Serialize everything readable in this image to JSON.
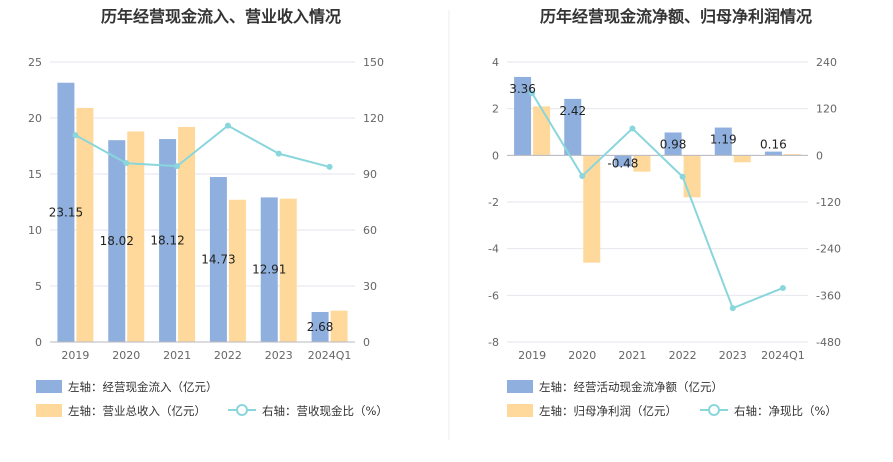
{
  "chart_data": [
    {
      "type": "bar",
      "title": "历年经营现金流入、营业收入情况",
      "categories": [
        "2019",
        "2020",
        "2021",
        "2022",
        "2023",
        "2024Q1"
      ],
      "left_axis": {
        "ylim": [
          0,
          25
        ],
        "ticks": [
          "0",
          "5",
          "10",
          "15",
          "20",
          "25"
        ]
      },
      "right_axis": {
        "ylim": [
          0,
          150
        ],
        "ticks": [
          "0",
          "30",
          "60",
          "90",
          "120",
          "150"
        ]
      },
      "series": [
        {
          "name": "左轴：经营现金流入（亿元）",
          "kind": "bar",
          "axis": "left",
          "color": "#8fb0de",
          "values": [
            23.15,
            18.02,
            18.12,
            14.73,
            12.91,
            2.68
          ],
          "labels": [
            "23.15",
            "18.02",
            "18.12",
            "14.73",
            "12.91",
            "2.68"
          ]
        },
        {
          "name": "左轴：营业总收入（亿元）",
          "kind": "bar",
          "axis": "left",
          "color": "#ffd99b",
          "values": [
            20.9,
            18.8,
            19.2,
            12.7,
            12.8,
            2.8
          ]
        },
        {
          "name": "右轴：营收现金比（%）",
          "kind": "line",
          "axis": "right",
          "color": "#8ad6dd",
          "values": [
            110.8,
            95.8,
            94.2,
            115.9,
            100.9,
            93.8
          ]
        }
      ],
      "legend_position": "bottom",
      "grid": true
    },
    {
      "type": "bar",
      "title": "历年经营现金流净额、归母净利润情况",
      "categories": [
        "2019",
        "2020",
        "2021",
        "2022",
        "2023",
        "2024Q1"
      ],
      "left_axis": {
        "ylim": [
          -8,
          4
        ],
        "ticks": [
          "-8",
          "-6",
          "-4",
          "-2",
          "0",
          "2",
          "4"
        ]
      },
      "right_axis": {
        "ylim": [
          -480,
          240
        ],
        "ticks": [
          "-480",
          "-360",
          "-240",
          "-120",
          "0",
          "120",
          "240"
        ]
      },
      "series": [
        {
          "name": "左轴：经营活动现金流净额（亿元）",
          "kind": "bar",
          "axis": "left",
          "color": "#8fb0de",
          "values": [
            3.36,
            2.42,
            -0.48,
            0.98,
            1.19,
            0.16
          ],
          "labels": [
            "3.36",
            "2.42",
            "-0.48",
            "0.98",
            "1.19",
            "0.16"
          ]
        },
        {
          "name": "左轴：归母净利润（亿元）",
          "kind": "bar",
          "axis": "left",
          "color": "#ffd99b",
          "values": [
            2.1,
            -4.6,
            -0.7,
            -1.8,
            -0.3,
            0.05
          ]
        },
        {
          "name": "右轴：净现比（%）",
          "kind": "line",
          "axis": "right",
          "color": "#8ad6dd",
          "values": [
            160,
            -53,
            69,
            -55,
            -393,
            -341
          ]
        }
      ],
      "legend_position": "bottom",
      "grid": true
    }
  ]
}
